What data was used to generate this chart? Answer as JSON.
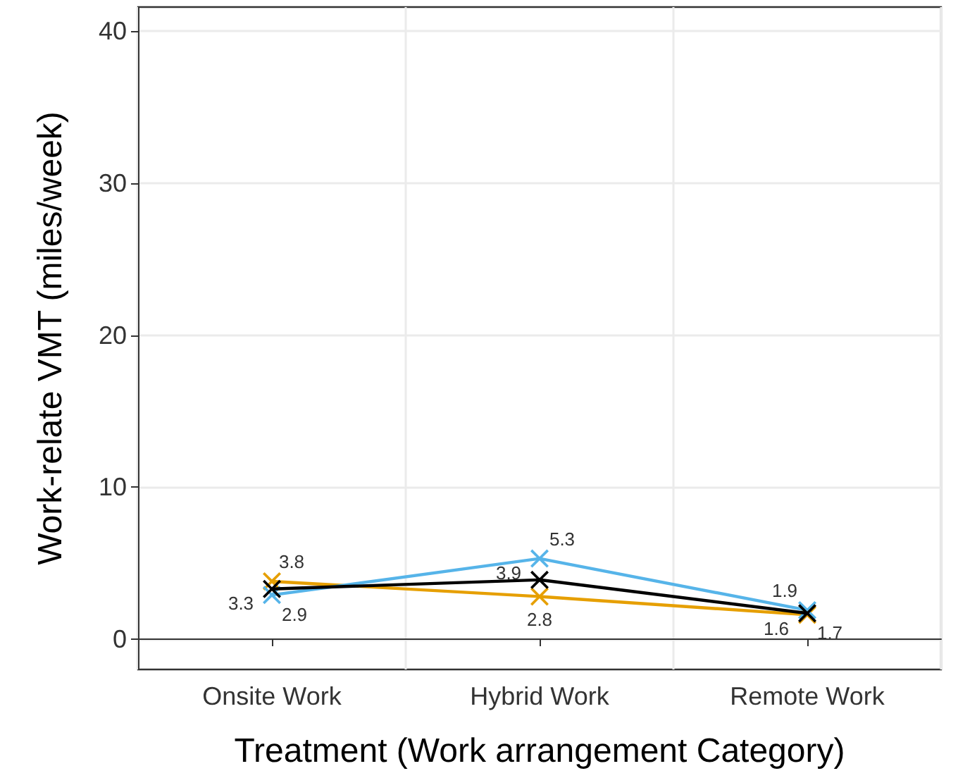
{
  "chart_data": {
    "type": "line",
    "xlabel": "Treatment (Work arrangement Category)",
    "ylabel": "Work-relate VMT (miles/week)",
    "categories": [
      "Onsite Work",
      "Hybrid Work",
      "Remote Work"
    ],
    "series": [
      {
        "color": "#e69f00",
        "values": [
          3.8,
          2.8,
          1.6
        ]
      },
      {
        "color": "#56b4e9",
        "values": [
          2.9,
          5.3,
          1.9
        ]
      },
      {
        "color": "#000000",
        "values": [
          3.3,
          3.9,
          1.7
        ]
      }
    ],
    "ylim": [
      -2,
      41.6
    ],
    "yticks": [
      0,
      10,
      20,
      30,
      40
    ],
    "grid": true,
    "data_labels": true,
    "marker": "cross",
    "line_style": "solid"
  }
}
